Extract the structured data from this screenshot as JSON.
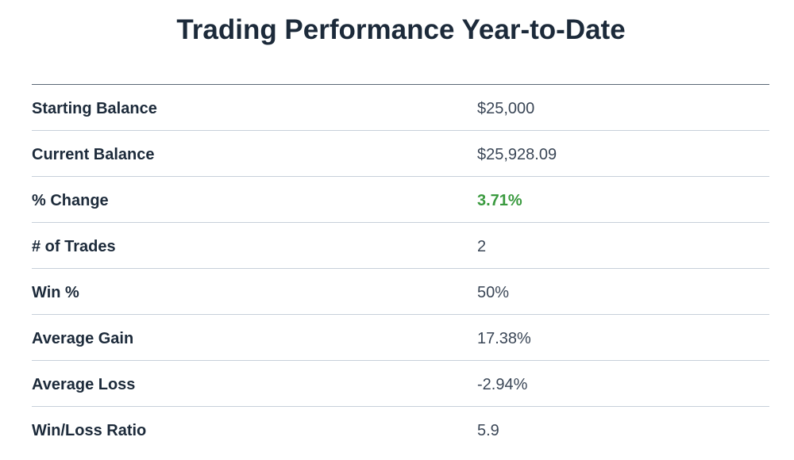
{
  "title": "Trading Performance Year-to-Date",
  "accent_colors": {
    "positive": "#3a9a3f",
    "text_dark": "#1c2a3a"
  },
  "rows": [
    {
      "label": "Starting Balance",
      "value": "$25,000"
    },
    {
      "label": "Current Balance",
      "value": "$25,928.09"
    },
    {
      "label": "% Change",
      "value": "3.71%",
      "status": "positive"
    },
    {
      "label": "# of Trades",
      "value": "2"
    },
    {
      "label": "Win %",
      "value": "50%"
    },
    {
      "label": "Average Gain",
      "value": "17.38%"
    },
    {
      "label": "Average Loss",
      "value": "-2.94%"
    },
    {
      "label": "Win/Loss Ratio",
      "value": "5.9"
    }
  ]
}
